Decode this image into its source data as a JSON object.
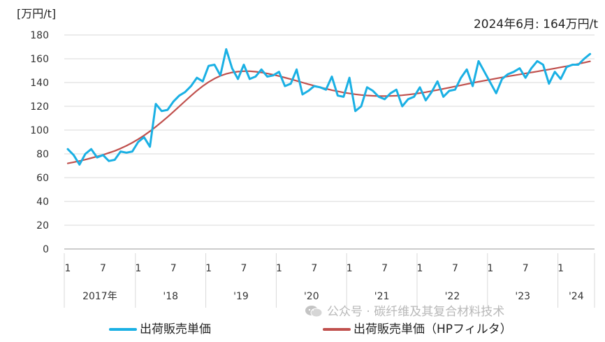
{
  "chart_data": {
    "type": "line",
    "unit_label": "[万円/t]",
    "annotation": "2024年6月: 164万円/t",
    "ylim": [
      0,
      180
    ],
    "y_ticks": [
      "0",
      "20",
      "40",
      "60",
      "80",
      "100",
      "120",
      "140",
      "160",
      "180"
    ],
    "x_tick_labels": [
      "1",
      "7",
      "1",
      "7",
      "1",
      "7",
      "1",
      "7",
      "1",
      "7",
      "1",
      "7",
      "1",
      "7",
      "1"
    ],
    "year_labels": [
      "2017年",
      "'18",
      "'19",
      "'20",
      "'21",
      "'22",
      "'23",
      "'24"
    ],
    "grid": true,
    "legend_position": "bottom",
    "start_month": "2017-01",
    "series": [
      {
        "name": "出荷販売単価",
        "color": "#1ab0e4",
        "values": [
          84,
          79,
          71,
          80,
          84,
          77,
          79,
          74,
          75,
          82,
          81,
          82,
          90,
          94,
          86,
          122,
          116,
          117,
          124,
          129,
          132,
          137,
          144,
          141,
          154,
          155,
          146,
          168,
          152,
          143,
          155,
          143,
          145,
          151,
          145,
          146,
          149,
          137,
          139,
          151,
          130,
          133,
          137,
          136,
          134,
          145,
          129,
          128,
          144,
          116,
          120,
          136,
          133,
          128,
          126,
          131,
          134,
          120,
          126,
          128,
          136,
          125,
          132,
          141,
          128,
          133,
          134,
          144,
          151,
          137,
          158,
          149,
          140,
          131,
          143,
          147,
          149,
          152,
          144,
          152,
          158,
          155,
          139,
          149,
          143,
          153,
          155,
          155,
          160,
          164
        ]
      },
      {
        "name": "出荷販売単価（HPフィルタ）",
        "color": "#c0504d",
        "values": [
          72.0,
          73.0,
          74.0,
          75.2,
          76.5,
          77.8,
          79.2,
          80.8,
          82.5,
          84.5,
          86.8,
          89.4,
          92.3,
          95.5,
          99.0,
          102.8,
          106.8,
          111.0,
          115.4,
          119.9,
          124.4,
          128.9,
          133.1,
          137.0,
          140.4,
          143.3,
          145.6,
          147.3,
          148.5,
          149.2,
          149.5,
          149.5,
          149.1,
          148.5,
          147.6,
          146.6,
          145.4,
          144.1,
          142.8,
          141.4,
          140.0,
          138.6,
          137.3,
          136.0,
          134.8,
          133.6,
          132.6,
          131.6,
          130.8,
          130.1,
          129.5,
          129.1,
          128.8,
          128.6,
          128.6,
          128.7,
          128.9,
          129.3,
          129.8,
          130.4,
          131.1,
          131.9,
          132.8,
          133.7,
          134.7,
          135.7,
          136.7,
          137.7,
          138.7,
          139.7,
          140.7,
          141.6,
          142.5,
          143.4,
          144.3,
          145.2,
          146.0,
          146.8,
          147.7,
          148.5,
          149.3,
          150.2,
          151.0,
          151.9,
          152.8,
          153.7,
          154.7,
          155.7,
          156.7,
          157.8
        ]
      }
    ]
  },
  "watermark": {
    "text": "公众号 · 碳纤维及其复合材料技术"
  }
}
